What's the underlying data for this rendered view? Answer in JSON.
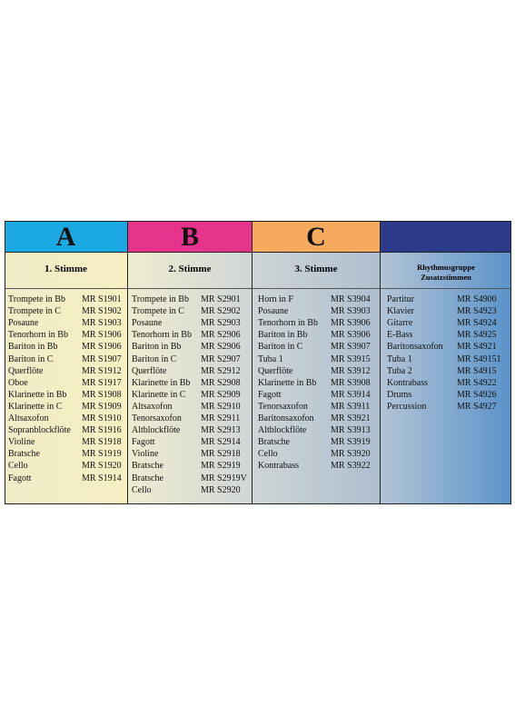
{
  "columns": [
    {
      "letter": "A",
      "heading": [
        "1. Stimme"
      ],
      "rows": [
        [
          "Trompete in Bb",
          "MR S1901"
        ],
        [
          "Trompete in C",
          "MR S1902"
        ],
        [
          "Posaune",
          "MR S1903"
        ],
        [
          "Tenorhorn in Bb",
          "MR S1906"
        ],
        [
          "Bariton in Bb",
          "MR S1906"
        ],
        [
          "Bariton in C",
          "MR S1907"
        ],
        [
          "Querflöte",
          "MR S1912"
        ],
        [
          "Oboe",
          "MR S1917"
        ],
        [
          "Klarinette in Bb",
          "MR S1908"
        ],
        [
          "Klarinette in C",
          "MR S1909"
        ],
        [
          "Altsaxofon",
          "MR S1910"
        ],
        [
          "Sopranblockflöte",
          "MR S1916"
        ],
        [
          "Violine",
          "MR S1918"
        ],
        [
          "Bratsche",
          "MR S1919"
        ],
        [
          "Cello",
          "MR S1920"
        ],
        [
          "Fagott",
          "MR S1914"
        ]
      ]
    },
    {
      "letter": "B",
      "heading": [
        "2. Stimme"
      ],
      "rows": [
        [
          "Trompete in Bb",
          "MR S2901"
        ],
        [
          "Trompete in C",
          "MR S2902"
        ],
        [
          "Posaune",
          "MR S2903"
        ],
        [
          "Tenorhorn in Bb",
          "MR S2906"
        ],
        [
          "Bariton in Bb",
          "MR S2906"
        ],
        [
          "Bariton in C",
          "MR S2907"
        ],
        [
          "Querflöte",
          "MR S2912"
        ],
        [
          "Klarinette in Bb",
          "MR S2908"
        ],
        [
          "Klarinette in C",
          "MR S2909"
        ],
        [
          "Altsaxofon",
          "MR S2910"
        ],
        [
          "Tenorsaxofon",
          "MR S2911"
        ],
        [
          "Altblockflöte",
          "MR S2913"
        ],
        [
          "Fagott",
          "MR S2914"
        ],
        [
          "Violine",
          "MR S2918"
        ],
        [
          "Bratsche",
          "MR S2919"
        ],
        [
          "Bratsche",
          "MR S2919V"
        ],
        [
          "Cello",
          "MR S2920"
        ]
      ]
    },
    {
      "letter": "C",
      "heading": [
        "3. Stimme"
      ],
      "rows": [
        [
          "Horn in F",
          "MR S3904"
        ],
        [
          "Posaune",
          "MR S3903"
        ],
        [
          "Tenorhorn in Bb",
          "MR S3906"
        ],
        [
          "Bariton in Bb",
          "MR S3906"
        ],
        [
          "Bariton in C",
          "MR S3907"
        ],
        [
          "Tuba 1",
          "MR S3915"
        ],
        [
          "Querflöte",
          "MR S3912"
        ],
        [
          "Klarinette in Bb",
          "MR S3908"
        ],
        [
          "Fagott",
          "MR S3914"
        ],
        [
          "Tenorsaxofon",
          "MR S3911"
        ],
        [
          "Baritonsaxofon",
          "MR S3921"
        ],
        [
          "Altblockflöte",
          "MR S3913"
        ],
        [
          "Bratsche",
          "MR S3919"
        ],
        [
          "Cello",
          "MR S3920"
        ],
        [
          "Kontrabass",
          "MR S3922"
        ]
      ]
    },
    {
      "heading": [
        "Rhythmusgruppe",
        "Zusatzstimmen"
      ],
      "rows": [
        [
          "Partitur",
          "MR S4900"
        ],
        [
          "Klavier",
          "MR S4923"
        ],
        [
          "Gitarre",
          "MR S4924"
        ],
        [
          "E-Bass",
          "MR S4925"
        ],
        [
          "Baritonsaxofon",
          "MR S4921"
        ],
        [
          "Tuba 1",
          "MR S49151"
        ],
        [
          "Tuba 2",
          "MR S4915"
        ],
        [
          "Kontrabass",
          "MR S4922"
        ],
        [
          "Drums",
          "MR S4926"
        ],
        [
          "Percussion",
          "MR S4927"
        ]
      ]
    }
  ]
}
